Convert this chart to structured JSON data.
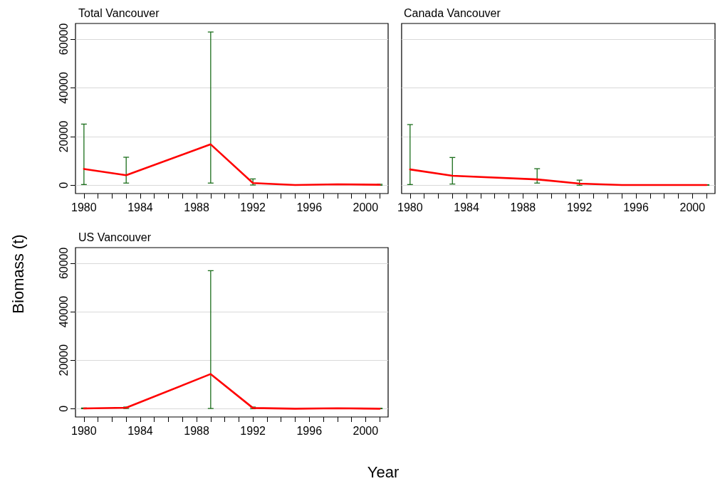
{
  "chart_data": [
    {
      "type": "line",
      "title": "Total Vancouver",
      "ylabel": "Biomass (t)",
      "x": [
        1980,
        1983,
        1989,
        1992,
        1995,
        1998,
        2001
      ],
      "values": [
        6700,
        4100,
        16800,
        900,
        100,
        400,
        200
      ],
      "errors": [
        [
          300,
          25100
        ],
        [
          900,
          11500
        ],
        [
          900,
          62900
        ],
        [
          100,
          2600
        ],
        null,
        [
          300,
          500
        ],
        [
          0,
          400
        ]
      ],
      "color": "#ff0000",
      "marker": "none",
      "grid": "y",
      "xlim": [
        1979.4,
        2001.6
      ],
      "xticks": [
        1980,
        {
          "value": 1981,
          "label": null
        },
        {
          "value": 1982,
          "label": null
        },
        {
          "value": 1983,
          "label": null
        },
        1984,
        {
          "value": 1985,
          "label": null
        },
        {
          "value": 1986,
          "label": null
        },
        {
          "value": 1987,
          "label": null
        },
        1988,
        {
          "value": 1989,
          "label": null
        },
        {
          "value": 1990,
          "label": null
        },
        {
          "value": 1991,
          "label": null
        },
        1992,
        {
          "value": 1993,
          "label": null
        },
        {
          "value": 1994,
          "label": null
        },
        {
          "value": 1995,
          "label": null
        },
        1996,
        {
          "value": 1997,
          "label": null
        },
        {
          "value": 1998,
          "label": null
        },
        {
          "value": 1999,
          "label": null
        },
        2000,
        {
          "value": 2001,
          "label": null
        }
      ],
      "ylim": [
        -3400,
        66400
      ],
      "yticks": [
        0,
        20000,
        40000,
        60000
      ]
    },
    {
      "type": "line",
      "title": "Canada Vancouver",
      "x": [
        1980,
        1983,
        1989,
        1992,
        1995,
        1998,
        2001
      ],
      "values": [
        6500,
        3900,
        2400,
        700,
        100,
        100,
        100
      ],
      "errors": [
        [
          300,
          24900
        ],
        [
          500,
          11400
        ],
        [
          900,
          6800
        ],
        [
          0,
          2100
        ],
        null,
        [
          0,
          200
        ],
        [
          0,
          200
        ]
      ],
      "color": "#ff0000",
      "marker": "none",
      "grid": "y",
      "tick_labels": "x",
      "xlim": [
        1979.4,
        2001.6
      ],
      "xticks": [
        1980,
        {
          "value": 1981,
          "label": null
        },
        {
          "value": 1982,
          "label": null
        },
        {
          "value": 1983,
          "label": null
        },
        1984,
        {
          "value": 1985,
          "label": null
        },
        {
          "value": 1986,
          "label": null
        },
        {
          "value": 1987,
          "label": null
        },
        1988,
        {
          "value": 1989,
          "label": null
        },
        {
          "value": 1990,
          "label": null
        },
        {
          "value": 1991,
          "label": null
        },
        1992,
        {
          "value": 1993,
          "label": null
        },
        {
          "value": 1994,
          "label": null
        },
        {
          "value": 1995,
          "label": null
        },
        1996,
        {
          "value": 1997,
          "label": null
        },
        {
          "value": 1998,
          "label": null
        },
        {
          "value": 1999,
          "label": null
        },
        2000,
        {
          "value": 2001,
          "label": null
        }
      ],
      "ylim": [
        -3400,
        66400
      ],
      "yticks": [
        0,
        20000,
        40000,
        60000
      ]
    },
    {
      "type": "line",
      "title": "US Vancouver",
      "xlabel": "Year",
      "x": [
        1980,
        1983,
        1989,
        1992,
        1995,
        1998,
        2001
      ],
      "values": [
        100,
        400,
        14300,
        300,
        0,
        200,
        0
      ],
      "errors": [
        [
          0,
          300
        ],
        [
          100,
          700
        ],
        [
          100,
          56900
        ],
        [
          0,
          700
        ],
        null,
        null,
        [
          0,
          200
        ]
      ],
      "color": "#ff0000",
      "marker": "none",
      "grid": "y",
      "xlim": [
        1979.4,
        2001.6
      ],
      "xticks": [
        1980,
        {
          "value": 1981,
          "label": null
        },
        {
          "value": 1982,
          "label": null
        },
        {
          "value": 1983,
          "label": null
        },
        1984,
        {
          "value": 1985,
          "label": null
        },
        {
          "value": 1986,
          "label": null
        },
        {
          "value": 1987,
          "label": null
        },
        1988,
        {
          "value": 1989,
          "label": null
        },
        {
          "value": 1990,
          "label": null
        },
        {
          "value": 1991,
          "label": null
        },
        1992,
        {
          "value": 1993,
          "label": null
        },
        {
          "value": 1994,
          "label": null
        },
        {
          "value": 1995,
          "label": null
        },
        1996,
        {
          "value": 1997,
          "label": null
        },
        {
          "value": 1998,
          "label": null
        },
        {
          "value": 1999,
          "label": null
        },
        2000,
        {
          "value": 2001,
          "label": null
        }
      ],
      "ylim": [
        -3400,
        66400
      ],
      "yticks": [
        0,
        20000,
        40000,
        60000
      ]
    }
  ]
}
